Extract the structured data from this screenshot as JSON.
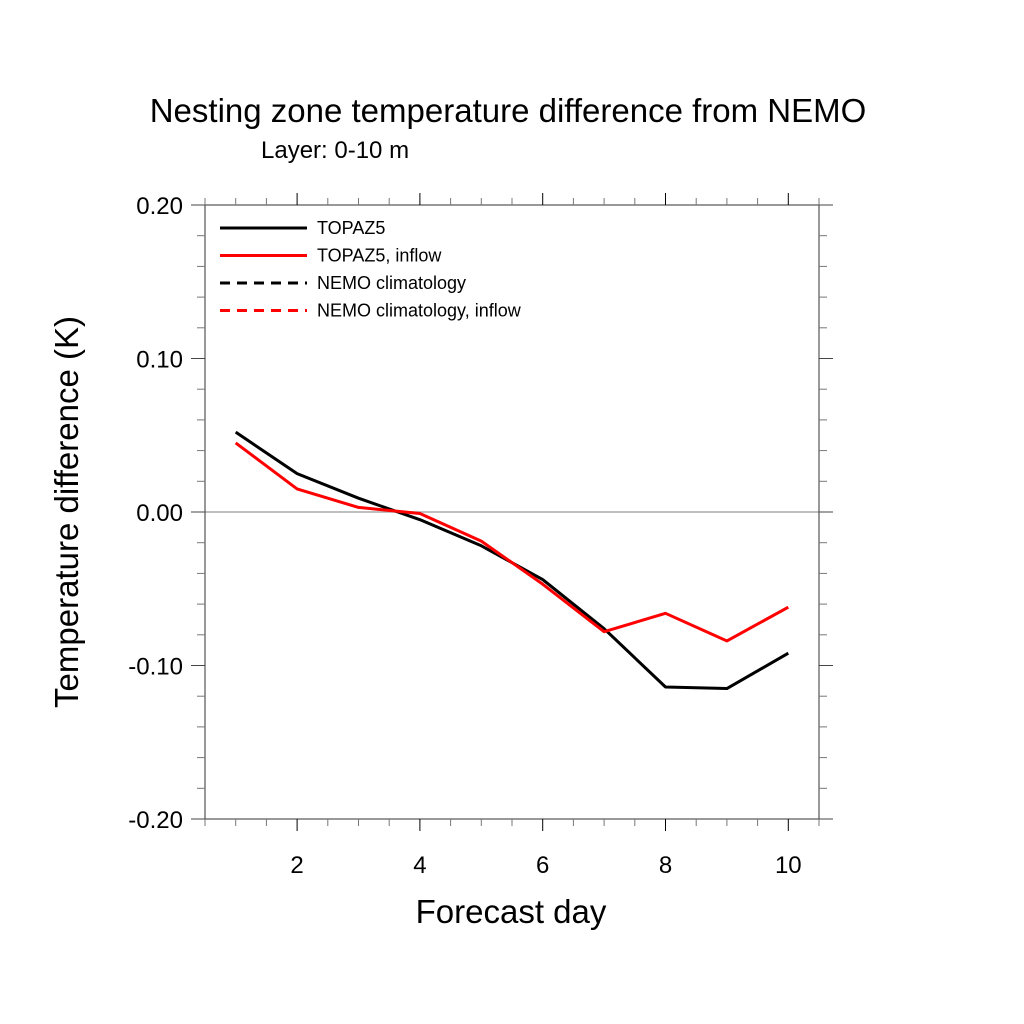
{
  "chart_data": {
    "type": "line",
    "title": "Nesting zone temperature difference from NEMO",
    "subtitle": "Layer: 0-10 m",
    "xlabel": "Forecast day",
    "ylabel": "Temperature difference (K)",
    "xlim": [
      0.5,
      10.5
    ],
    "ylim": [
      -0.2,
      0.2
    ],
    "x_ticks": [
      2,
      4,
      6,
      8,
      10
    ],
    "x_tick_labels": [
      "2",
      "4",
      "6",
      "8",
      "10"
    ],
    "y_ticks": [
      0.2,
      0.1,
      0.0,
      -0.1,
      -0.2
    ],
    "y_tick_labels": [
      "0.20",
      "0.10",
      "0.00",
      "-0.10",
      "-0.20"
    ],
    "reference_line": 0.0,
    "grid": false,
    "legend_position": "top-left",
    "x": [
      1,
      2,
      3,
      4,
      5,
      6,
      7,
      8,
      9,
      10
    ],
    "series": [
      {
        "name": "TOPAZ5",
        "color": "#000000",
        "dash": "solid",
        "values": [
          0.052,
          0.025,
          0.009,
          -0.005,
          -0.022,
          -0.044,
          -0.076,
          -0.114,
          -0.115,
          -0.092
        ]
      },
      {
        "name": "TOPAZ5, inflow",
        "color": "#ff0000",
        "dash": "solid",
        "values": [
          0.045,
          0.015,
          0.003,
          -0.001,
          -0.019,
          -0.047,
          -0.078,
          -0.066,
          -0.084,
          -0.062
        ]
      },
      {
        "name": "NEMO climatology",
        "color": "#000000",
        "dash": "dashed",
        "values": []
      },
      {
        "name": "NEMO climatology, inflow",
        "color": "#ff0000",
        "dash": "dashed",
        "values": []
      }
    ]
  }
}
